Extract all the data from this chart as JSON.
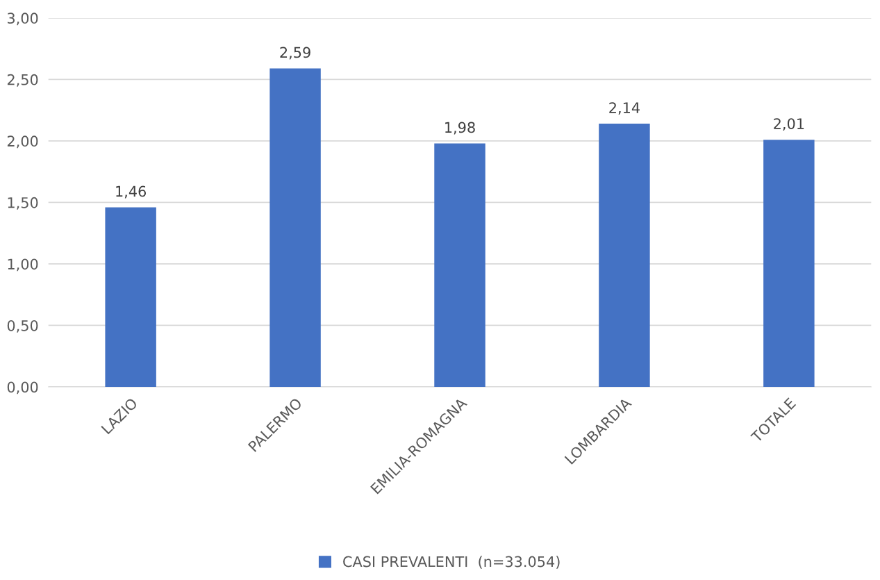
{
  "chart_data": {
    "type": "bar",
    "categories": [
      "LAZIO",
      "PALERMO",
      "EMILIA-ROMAGNA",
      "LOMBARDIA",
      "TOTALE"
    ],
    "series": [
      {
        "name": "CASI PREVALENTI  (n=33.054)",
        "color": "#4472c4",
        "values": [
          1.46,
          2.59,
          1.98,
          2.14,
          2.01
        ],
        "value_labels": [
          "1,46",
          "2,59",
          "1,98",
          "2,14",
          "2,01"
        ]
      }
    ],
    "ylim": [
      0,
      3
    ],
    "yticks": [
      {
        "value": 0,
        "label": "0,00"
      },
      {
        "value": 0.5,
        "label": "0,50"
      },
      {
        "value": 1,
        "label": "1,00"
      },
      {
        "value": 1.5,
        "label": "1,50"
      },
      {
        "value": 2,
        "label": "2,00"
      },
      {
        "value": 2.5,
        "label": "2,50"
      },
      {
        "value": 3,
        "label": "3,00"
      }
    ],
    "grid": "y",
    "legend": "bottom"
  }
}
